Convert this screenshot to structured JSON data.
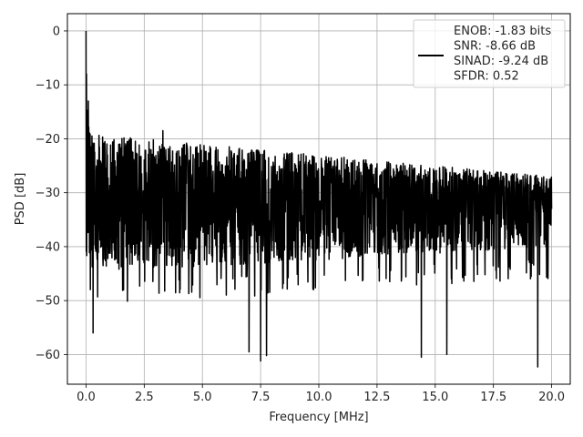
{
  "chart_data": {
    "type": "line",
    "title": "",
    "xlabel": "Frequency [MHz]",
    "ylabel": "PSD [dB]",
    "xlim": [
      -0.8,
      20.8
    ],
    "ylim": [
      -65.5,
      3.2
    ],
    "xticks": [
      0.0,
      2.5,
      5.0,
      7.5,
      10.0,
      12.5,
      15.0,
      17.5,
      20.0
    ],
    "xtick_labels": [
      "0.0",
      "2.5",
      "5.0",
      "7.5",
      "10.0",
      "12.5",
      "15.0",
      "17.5",
      "20.0"
    ],
    "yticks": [
      0,
      -10,
      -20,
      -30,
      -40,
      -50,
      -60
    ],
    "ytick_labels": [
      "0",
      "−10",
      "−20",
      "−30",
      "−40",
      "−50",
      "−60"
    ],
    "grid": true,
    "legend_position": "top-right",
    "series": [
      {
        "name": "ENOB: -1.83 bits\nSNR: -8.66 dB\nSINAD: -9.24 dB\nSFDR: 0.52",
        "color": "#000000",
        "x_range": [
          0,
          20
        ],
        "peaks": [
          {
            "x": 0.0,
            "y": 0.0
          },
          {
            "x": 0.02,
            "y": -8.0
          },
          {
            "x": 0.05,
            "y": -33.5
          },
          {
            "x": 0.1,
            "y": -13.0
          },
          {
            "x": 0.18,
            "y": -48.0
          },
          {
            "x": 0.3,
            "y": -56.0
          },
          {
            "x": 3.3,
            "y": -18.5
          },
          {
            "x": 7.0,
            "y": -59.5
          },
          {
            "x": 7.5,
            "y": -61.2
          },
          {
            "x": 7.75,
            "y": -60.2
          },
          {
            "x": 14.4,
            "y": -60.5
          },
          {
            "x": 15.5,
            "y": -60.0
          },
          {
            "x": 19.4,
            "y": -62.3
          },
          {
            "x": 20.0,
            "y": -33.0
          }
        ],
        "noise_floor": {
          "mean": -31,
          "upper_envelope": [
            -19,
            -27
          ],
          "lower_envelope": [
            -45,
            -40
          ]
        }
      }
    ],
    "legend_lines": [
      "ENOB: -1.83 bits",
      "SNR: -8.66 dB",
      "SINAD: -9.24 dB",
      "SFDR: 0.52"
    ]
  }
}
